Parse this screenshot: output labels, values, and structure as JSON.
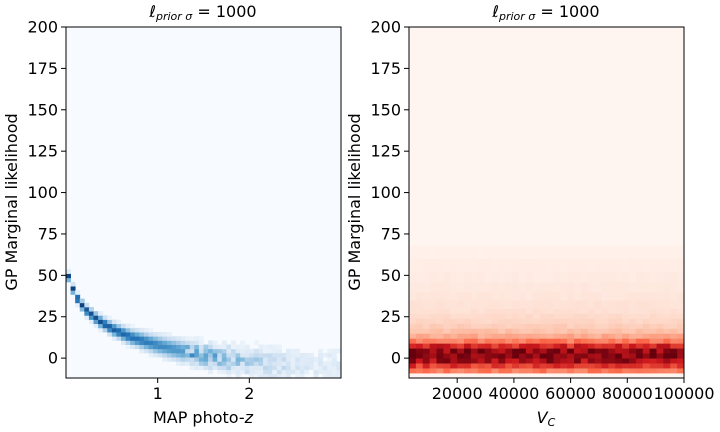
{
  "chart_data": [
    {
      "type": "heatmap",
      "title_base": "ℓ",
      "title_sub": "prior σ",
      "title_rest": " = 1000",
      "xlabel_main": "MAP photo-",
      "xlabel_ital": "z",
      "ylabel": "GP Marginal likelihood",
      "xlim": [
        0.0,
        3.0
      ],
      "ylim": [
        -12,
        200
      ],
      "xticks": [
        1,
        2
      ],
      "yticks": [
        0,
        25,
        50,
        75,
        100,
        125,
        150,
        175,
        200
      ],
      "colormap": "Blues",
      "colormap_stops": [
        "#f7fbff",
        "#c6dbef",
        "#6baed6",
        "#2171b5",
        "#08306b"
      ],
      "density_ridge": [
        {
          "x": 0.02,
          "y": 50
        },
        {
          "x": 0.1,
          "y": 38
        },
        {
          "x": 0.2,
          "y": 30
        },
        {
          "x": 0.35,
          "y": 23
        },
        {
          "x": 0.5,
          "y": 18
        },
        {
          "x": 0.7,
          "y": 13
        },
        {
          "x": 1.0,
          "y": 8
        },
        {
          "x": 1.3,
          "y": 4
        },
        {
          "x": 1.6,
          "y": 1
        },
        {
          "x": 2.0,
          "y": -2
        },
        {
          "x": 2.5,
          "y": -4
        },
        {
          "x": 3.0,
          "y": -5
        }
      ]
    },
    {
      "type": "heatmap",
      "title_base": "ℓ",
      "title_sub": "prior σ",
      "title_rest": " = 1000",
      "xlabel_main": "V",
      "xlabel_sub": "C",
      "ylabel": "GP Marginal likelihood",
      "xlim": [
        3000,
        100000
      ],
      "ylim": [
        -12,
        200
      ],
      "xticks": [
        20000,
        40000,
        60000,
        80000,
        100000
      ],
      "yticks": [
        0,
        25,
        50,
        75,
        100,
        125,
        150,
        175,
        200
      ],
      "colormap": "Reds",
      "colormap_stops": [
        "#fff5f0",
        "#fcbba1",
        "#fb6a4a",
        "#cb181d",
        "#67000d"
      ],
      "row_density": [
        {
          "y": -9,
          "v": 0.45
        },
        {
          "y": -6,
          "v": 0.65
        },
        {
          "y": -3,
          "v": 0.85
        },
        {
          "y": 0,
          "v": 0.95
        },
        {
          "y": 3,
          "v": 0.9
        },
        {
          "y": 6,
          "v": 0.7
        },
        {
          "y": 9,
          "v": 0.45
        },
        {
          "y": 12,
          "v": 0.3
        },
        {
          "y": 15,
          "v": 0.22
        },
        {
          "y": 18,
          "v": 0.17
        },
        {
          "y": 21,
          "v": 0.13
        },
        {
          "y": 24,
          "v": 0.11
        },
        {
          "y": 27,
          "v": 0.09
        },
        {
          "y": 30,
          "v": 0.08
        },
        {
          "y": 35,
          "v": 0.065
        },
        {
          "y": 40,
          "v": 0.055
        },
        {
          "y": 46,
          "v": 0.045
        },
        {
          "y": 52,
          "v": 0.035
        },
        {
          "y": 60,
          "v": 0.02
        }
      ]
    }
  ]
}
